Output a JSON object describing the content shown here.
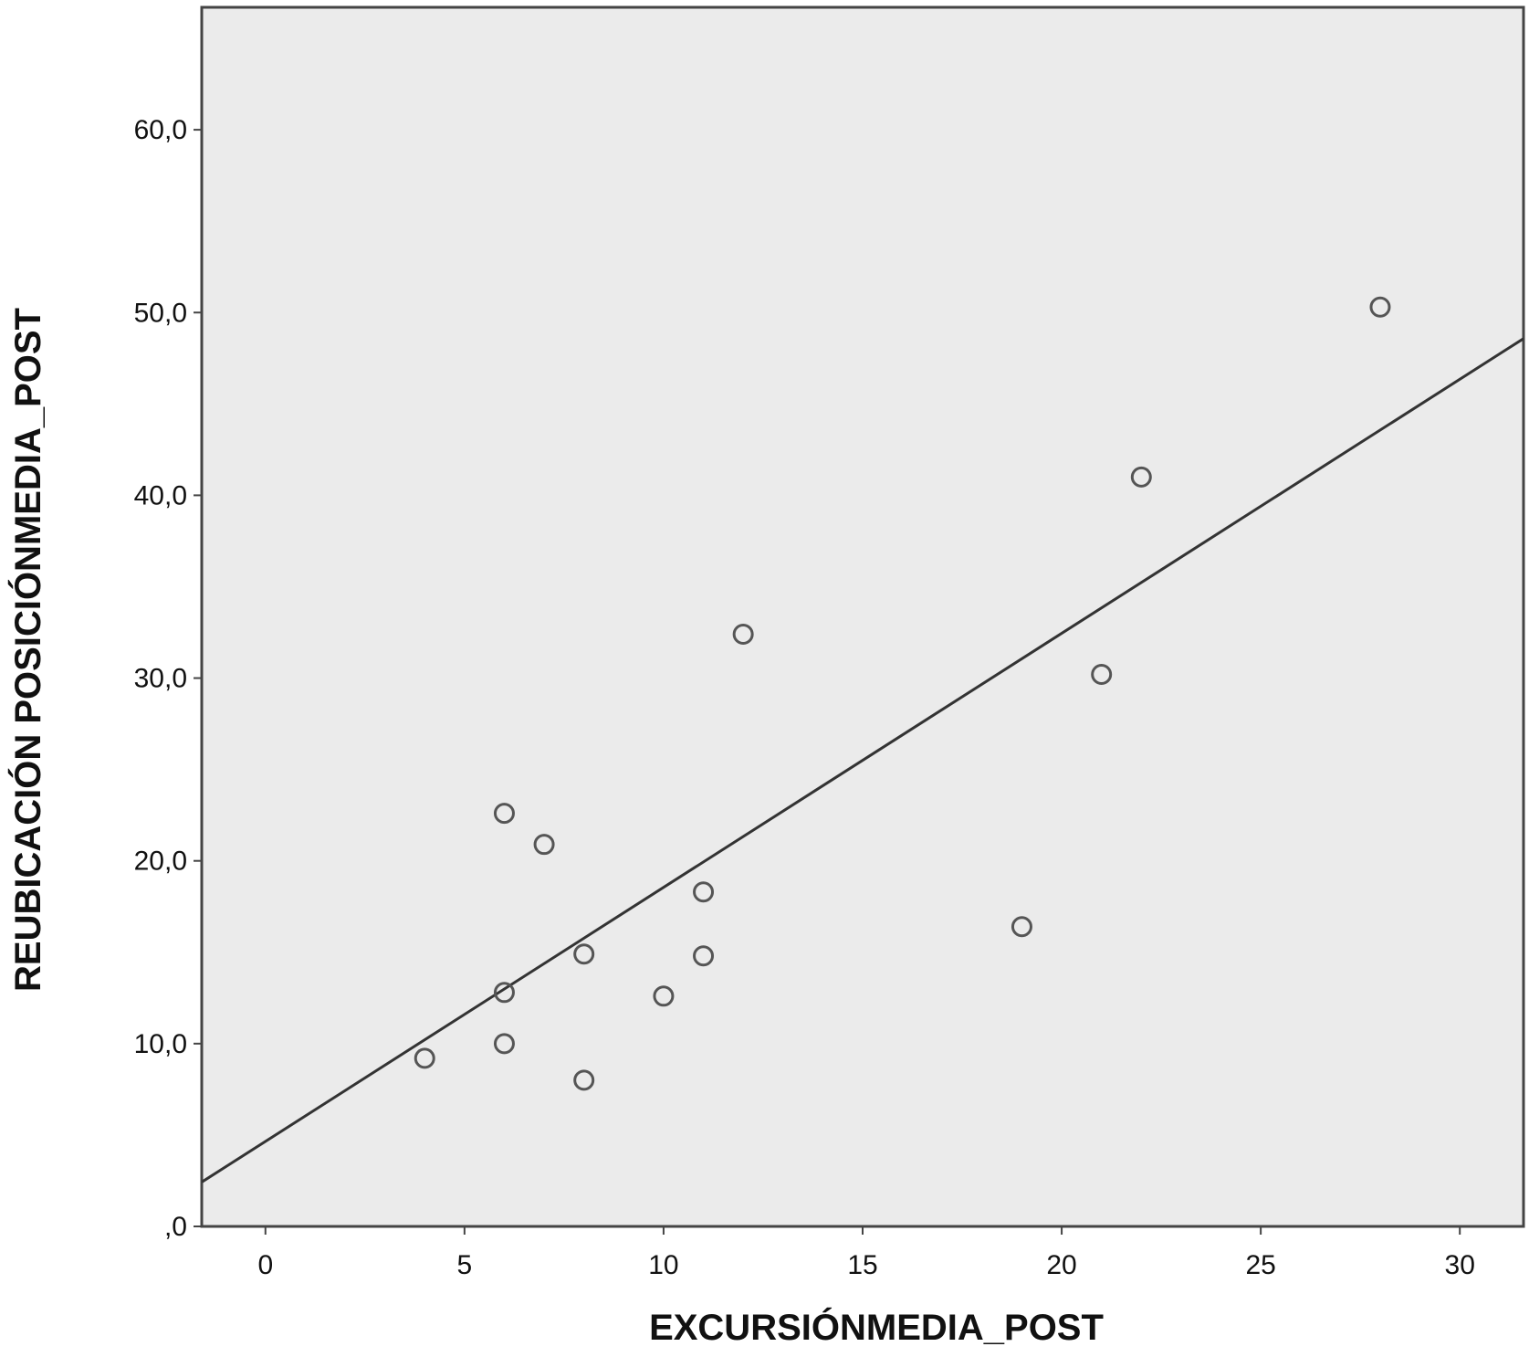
{
  "chart_data": {
    "type": "scatter",
    "title": "",
    "xlabel": "EXCURSIÓNMEDIA_POST",
    "ylabel": "REUBICACIÓN POSICIÓNMEDIA_POST",
    "xlim": [
      -1.6,
      31.6
    ],
    "ylim": [
      0,
      66.7
    ],
    "x_ticks": [
      {
        "value": 0,
        "label": "0"
      },
      {
        "value": 5,
        "label": "5"
      },
      {
        "value": 10,
        "label": "10"
      },
      {
        "value": 15,
        "label": "15"
      },
      {
        "value": 20,
        "label": "20"
      },
      {
        "value": 25,
        "label": "25"
      },
      {
        "value": 30,
        "label": "30"
      }
    ],
    "y_ticks": [
      {
        "value": 0,
        "label": ",0"
      },
      {
        "value": 10,
        "label": "10,0"
      },
      {
        "value": 20,
        "label": "20,0"
      },
      {
        "value": 30,
        "label": "30,0"
      },
      {
        "value": 40,
        "label": "40,0"
      },
      {
        "value": 50,
        "label": "50,0"
      },
      {
        "value": 60,
        "label": "60,0"
      }
    ],
    "grid": false,
    "legend": "none",
    "series": [
      {
        "points": [
          {
            "x": 4,
            "y": 9.2
          },
          {
            "x": 6,
            "y": 22.6
          },
          {
            "x": 6,
            "y": 12.8
          },
          {
            "x": 6,
            "y": 10.0
          },
          {
            "x": 7,
            "y": 20.9
          },
          {
            "x": 8,
            "y": 14.9
          },
          {
            "x": 8,
            "y": 8.0
          },
          {
            "x": 10,
            "y": 12.6
          },
          {
            "x": 11,
            "y": 18.3
          },
          {
            "x": 11,
            "y": 14.8
          },
          {
            "x": 12,
            "y": 32.4
          },
          {
            "x": 19,
            "y": 16.4
          },
          {
            "x": 21,
            "y": 30.2
          },
          {
            "x": 22,
            "y": 41.0
          },
          {
            "x": 28,
            "y": 50.3
          }
        ]
      }
    ],
    "fit_line": {
      "intercept": 4.65,
      "slope": 1.39
    },
    "colors": {
      "plot_background": "#ebebeb",
      "marker_stroke": "#555555",
      "line": "#333333",
      "axis": "#444444"
    }
  }
}
